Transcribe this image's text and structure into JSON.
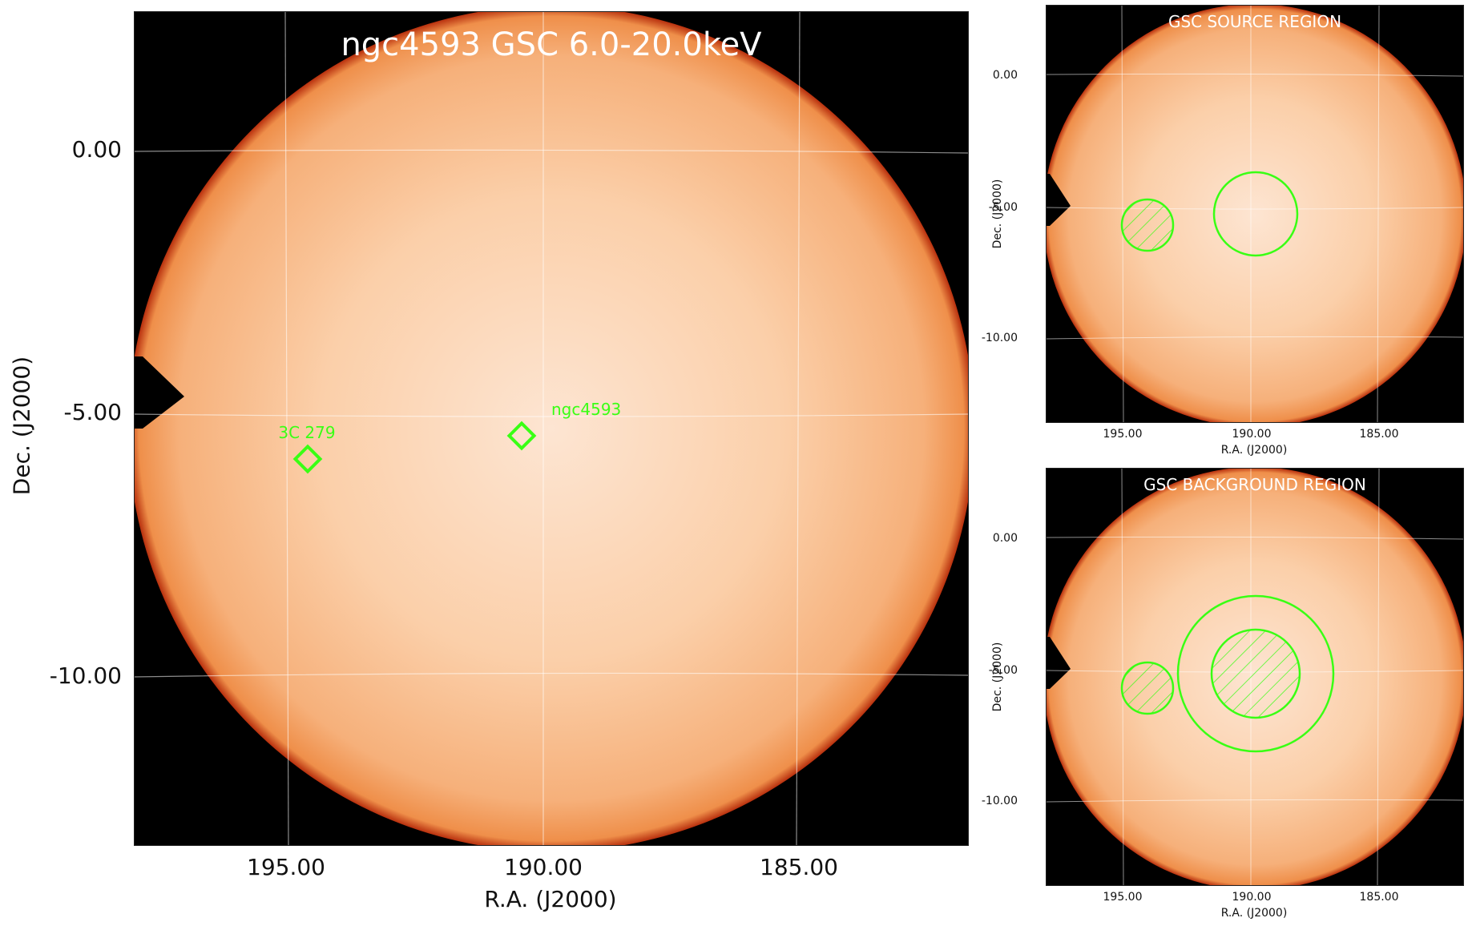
{
  "main": {
    "title": "ngc4593 GSC 6.0-20.0keV",
    "xlabel": "R.A. (J2000)",
    "ylabel": "Dec. (J2000)",
    "xticks": [
      "195.00",
      "190.00",
      "185.00"
    ],
    "yticks": [
      "0.00",
      "-5.00",
      "-10.00"
    ],
    "sources": [
      {
        "name": "3C 279"
      },
      {
        "name": "ngc4593"
      }
    ]
  },
  "source_panel": {
    "title": "GSC SOURCE REGION",
    "xlabel": "R.A. (J2000)",
    "ylabel": "Dec. (J2000)",
    "xticks": [
      "195.00",
      "190.00",
      "185.00"
    ],
    "yticks": [
      "0.00",
      "-5.00",
      "-10.00"
    ]
  },
  "background_panel": {
    "title": "GSC BACKGROUND REGION",
    "xlabel": "R.A. (J2000)",
    "ylabel": "Dec. (J2000)",
    "xticks": [
      "195.00",
      "190.00",
      "185.00"
    ],
    "yticks": [
      "0.00",
      "-5.00",
      "-10.00"
    ]
  },
  "colors": {
    "disk_center": "#fde3cf",
    "disk_edge": "#f29a55",
    "rim": "#c23a10",
    "background": "#000000",
    "region": "#39ff14",
    "grid": "#ffffff"
  }
}
